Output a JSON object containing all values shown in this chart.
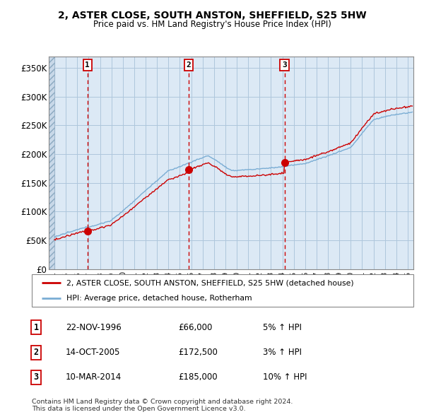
{
  "title": "2, ASTER CLOSE, SOUTH ANSTON, SHEFFIELD, S25 5HW",
  "subtitle": "Price paid vs. HM Land Registry's House Price Index (HPI)",
  "xlim_start": 1993.5,
  "xlim_end": 2025.5,
  "ylim_min": 0,
  "ylim_max": 370000,
  "yticks": [
    0,
    50000,
    100000,
    150000,
    200000,
    250000,
    300000,
    350000
  ],
  "ytick_labels": [
    "£0",
    "£50K",
    "£100K",
    "£150K",
    "£200K",
    "£250K",
    "£300K",
    "£350K"
  ],
  "xticks": [
    1994,
    1995,
    1996,
    1997,
    1998,
    1999,
    2000,
    2001,
    2002,
    2003,
    2004,
    2005,
    2006,
    2007,
    2008,
    2009,
    2010,
    2011,
    2012,
    2013,
    2014,
    2015,
    2016,
    2017,
    2018,
    2019,
    2020,
    2021,
    2022,
    2023,
    2024,
    2025
  ],
  "sale_dates": [
    1996.89,
    2005.79,
    2014.19
  ],
  "sale_prices": [
    66000,
    172500,
    185000
  ],
  "sale_labels": [
    "1",
    "2",
    "3"
  ],
  "hpi_line_color": "#7aadd4",
  "price_line_color": "#cc0000",
  "sale_dot_color": "#cc0000",
  "vline_color": "#cc0000",
  "plot_bg_color": "#dce9f5",
  "hatch_color": "#b0c4d8",
  "grid_color": "#aec6dc",
  "legend_line1": "2, ASTER CLOSE, SOUTH ANSTON, SHEFFIELD, S25 5HW (detached house)",
  "legend_line2": "HPI: Average price, detached house, Rotherham",
  "table_rows": [
    {
      "num": "1",
      "date": "22-NOV-1996",
      "price": "£66,000",
      "hpi": "5% ↑ HPI"
    },
    {
      "num": "2",
      "date": "14-OCT-2005",
      "price": "£172,500",
      "hpi": "3% ↑ HPI"
    },
    {
      "num": "3",
      "date": "10-MAR-2014",
      "price": "£185,000",
      "hpi": "10% ↑ HPI"
    }
  ],
  "footer": "Contains HM Land Registry data © Crown copyright and database right 2024.\nThis data is licensed under the Open Government Licence v3.0.",
  "bg_color": "#ffffff"
}
